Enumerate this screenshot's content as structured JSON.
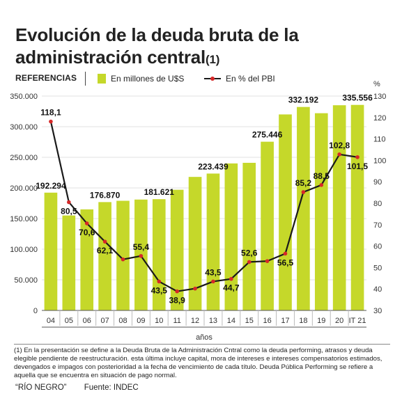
{
  "header": {
    "title": "Evolución de la deuda bruta de la administración central",
    "title_note_mark": "(1)"
  },
  "legend": {
    "references": "REFERENCIAS",
    "bars": "En millones de U$S",
    "line": "En % del PBI"
  },
  "footnote": "(1) En la presentación se define a la Deuda Bruta de la Administración Cntral como la deuda performing, atrasos y deuda elegible pendiente de reestructuración. esta última incluye capital, mora de intereses e intereses compensatorios estimados, devengados e impagos con posterioridad a la fecha de vencimiento de cada título. Deuda Pública Performing se refiere a aquella que se encuentra en situación de pago normal.",
  "footer": {
    "brand": "“RÍO NEGRO”",
    "source": "Fuente: INDEC"
  },
  "colors": {
    "bar": "#c5d82a",
    "line": "#1a1a1a",
    "marker": "#d62828",
    "grid": "#e2e2e2"
  },
  "chart_data": {
    "type": "bar",
    "title": "Evolución de la deuda bruta de la administración central(1)",
    "xlabel": "años",
    "categories": [
      "04",
      "05",
      "06",
      "07",
      "08",
      "09",
      "10",
      "11",
      "12",
      "13",
      "14",
      "15",
      "16",
      "17",
      "18",
      "19",
      "20",
      "IT 21"
    ],
    "grid": true,
    "legend_position": "top",
    "left_axis": {
      "unit_label": "",
      "ylim": [
        0,
        350000
      ],
      "ticks": [
        0,
        50000,
        100000,
        150000,
        200000,
        250000,
        300000,
        350000
      ],
      "tick_labels": [
        "0",
        "50.000",
        "100.000",
        "150.000",
        "200.000",
        "250.000",
        "300.000",
        "350.000"
      ]
    },
    "right_axis": {
      "unit_label": "%",
      "ylim": [
        30,
        130
      ],
      "ticks": [
        30,
        40,
        50,
        60,
        70,
        80,
        90,
        100,
        110,
        120,
        130
      ],
      "tick_labels": [
        "30",
        "40",
        "50",
        "60",
        "70",
        "80",
        "90",
        "100",
        "110",
        "120",
        "130"
      ]
    },
    "series": [
      {
        "name": "En millones de U$S",
        "kind": "bar",
        "axis": "left",
        "values": [
          192294,
          155000,
          165000,
          176870,
          179000,
          181000,
          181621,
          197000,
          218000,
          223439,
          240000,
          241000,
          275446,
          320000,
          332192,
          322000,
          335000,
          335556
        ],
        "labels": [
          "192.294",
          "",
          "",
          "176.870",
          "",
          "",
          "181.621",
          "",
          "",
          "223.439",
          "",
          "",
          "275.446",
          "",
          "332.192",
          "",
          "",
          "335.556"
        ]
      },
      {
        "name": "En % del PBI",
        "kind": "line",
        "axis": "right",
        "values": [
          118.1,
          80.5,
          70.6,
          62.1,
          53.8,
          55.4,
          43.5,
          38.9,
          40.2,
          43.5,
          44.7,
          52.6,
          53.0,
          56.5,
          85.2,
          88.5,
          102.8,
          101.5
        ],
        "labels": [
          "118,1",
          "80,5",
          "70,6",
          "62,1",
          "",
          "55,4",
          "43,5",
          "38,9",
          "",
          "43,5",
          "44,7",
          "52,6",
          "",
          "56,5",
          "85,2",
          "88,5",
          "102,8",
          "101,5"
        ]
      }
    ]
  }
}
